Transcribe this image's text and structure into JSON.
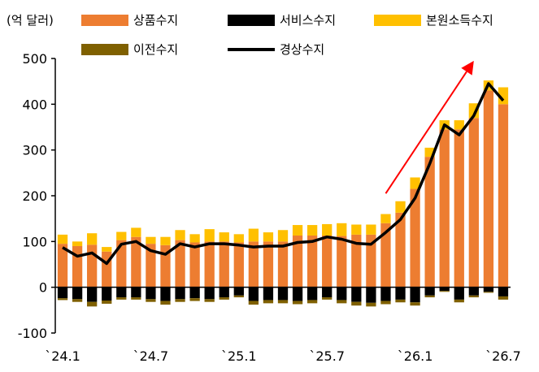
{
  "chart_data": {
    "type": "bar",
    "unit_label": "(억 달러)",
    "categories": [
      "`24.1",
      "",
      "",
      "",
      "",
      "",
      "`24.7",
      "",
      "",
      "",
      "",
      "",
      "`25.1",
      "",
      "",
      "",
      "",
      "",
      "`25.7",
      "",
      "",
      "",
      "",
      "",
      "`26.1",
      "",
      "",
      "",
      "",
      "",
      "`26.7"
    ],
    "ylim": [
      -100,
      500
    ],
    "yticks": [
      -100,
      0,
      100,
      200,
      300,
      400,
      500
    ],
    "series": [
      {
        "name": "상품수지",
        "kind": "bar",
        "color": "#ED7D31",
        "values": [
          95,
          90,
          93,
          78,
          103,
          110,
          95,
          92,
          103,
          98,
          100,
          100,
          98,
          100,
          100,
          100,
          113,
          113,
          113,
          112,
          115,
          115,
          140,
          163,
          215,
          285,
          345,
          345,
          370,
          430,
          400
        ]
      },
      {
        "name": "서비스수지",
        "kind": "bar",
        "color": "#000000",
        "values": [
          -24,
          -26,
          -32,
          -29,
          -22,
          -22,
          -26,
          -30,
          -26,
          -24,
          -26,
          -22,
          -18,
          -30,
          -28,
          -28,
          -30,
          -28,
          -22,
          -28,
          -32,
          -34,
          -30,
          -27,
          -33,
          -18,
          -8,
          -27,
          -18,
          -10,
          -20
        ]
      },
      {
        "name": "본원소득수지",
        "kind": "bar",
        "color": "#FFC000",
        "values": [
          20,
          10,
          25,
          10,
          18,
          20,
          15,
          18,
          22,
          18,
          27,
          20,
          18,
          28,
          20,
          25,
          23,
          23,
          25,
          28,
          22,
          22,
          20,
          25,
          25,
          20,
          20,
          20,
          32,
          22,
          37
        ]
      },
      {
        "name": "이전수지",
        "kind": "bar",
        "color": "#7F6000",
        "values": [
          -4,
          -6,
          -10,
          -7,
          -5,
          -5,
          -6,
          -8,
          -6,
          -6,
          -6,
          -5,
          -4,
          -8,
          -7,
          -7,
          -7,
          -7,
          -5,
          -7,
          -8,
          -8,
          -7,
          -6,
          -7,
          -4,
          -2,
          -6,
          -4,
          -2,
          -7
        ]
      },
      {
        "name": "경상수지",
        "kind": "line",
        "color": "#000000",
        "values": [
          87,
          68,
          75,
          52,
          94,
          100,
          80,
          72,
          95,
          88,
          95,
          95,
          92,
          88,
          90,
          90,
          98,
          100,
          110,
          105,
          96,
          94,
          120,
          148,
          195,
          270,
          355,
          333,
          375,
          445,
          408
        ]
      }
    ],
    "annotation": {
      "type": "arrow",
      "color": "#FF0000",
      "from": {
        "x": 22,
        "y": 205
      },
      "to": {
        "x": 28,
        "y": 495
      }
    },
    "legend_placement": "top",
    "grid": false
  }
}
